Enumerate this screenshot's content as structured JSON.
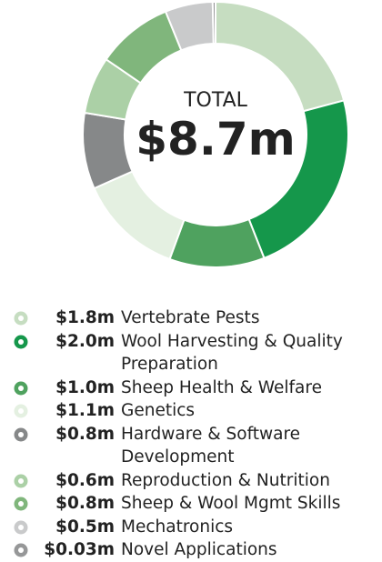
{
  "chart_data": {
    "type": "pie",
    "donut": true,
    "center_title": "TOTAL",
    "center_value": "$8.7m",
    "categories": [
      "Vertebrate Pests",
      "Wool Harvesting & Quality Preparation",
      "Sheep Health & Welfare",
      "Genetics",
      "Hardware & Software Development",
      "Reproduction & Nutrition",
      "Sheep & Wool Mgmt Skills",
      "Mechatronics",
      "Novel Applications"
    ],
    "values": [
      1.8,
      2.0,
      1.0,
      1.1,
      0.8,
      0.6,
      0.8,
      0.5,
      0.03
    ],
    "value_labels": [
      "$1.8m",
      "$2.0m",
      "$1.0m",
      "$1.1m",
      "$0.8m",
      "$0.6m",
      "$0.8m",
      "$0.5m",
      "$0.03m"
    ],
    "colors": [
      "#c6ddc1",
      "#15974b",
      "#4fa25f",
      "#e4f0e1",
      "#868889",
      "#abd0a6",
      "#80b67c",
      "#c9cacb",
      "#969798"
    ]
  }
}
